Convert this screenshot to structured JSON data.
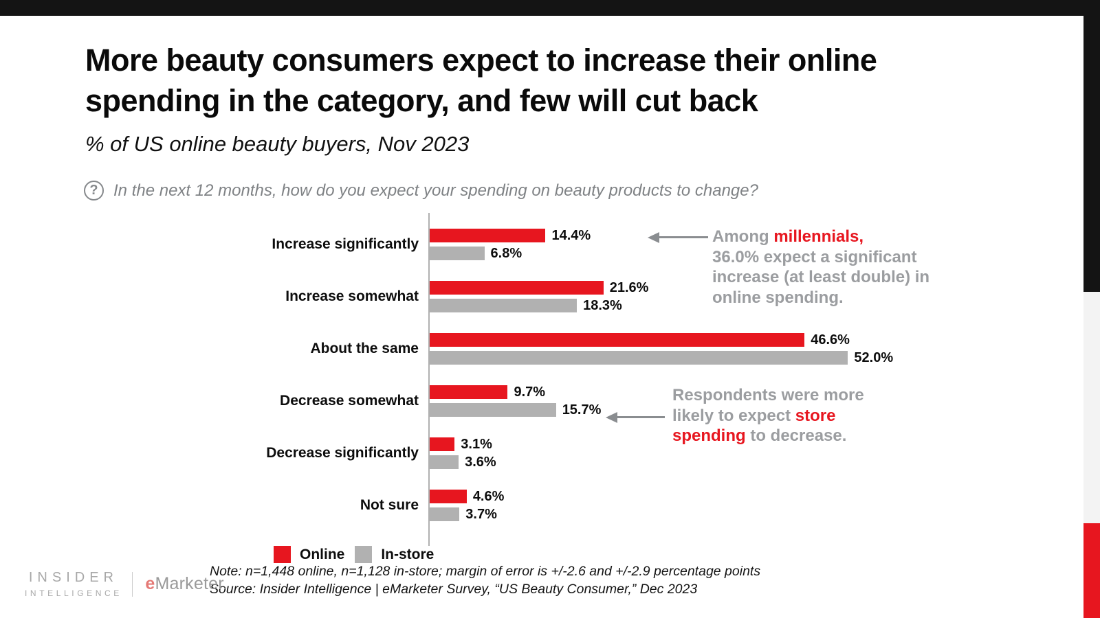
{
  "header": {
    "title_line1": "More beauty consumers expect to increase their online",
    "title_line2": "spending in the category, and few will cut back",
    "subtitle": "% of US online beauty buyers, Nov 2023",
    "question_icon": "question-mark-circle",
    "question": "In the next 12 months, how do you expect your spending on beauty products to change?"
  },
  "colors": {
    "online_red": "#e7161f",
    "instore_gray": "#b1b1b1",
    "annotation_gray": "#9b9da0",
    "accent_black": "#141414",
    "side_gray": "#f3f3f3"
  },
  "chart_data": {
    "type": "bar",
    "orientation": "horizontal",
    "title": "% of US online beauty buyers, Nov 2023",
    "categories": [
      "Increase significantly",
      "Increase somewhat",
      "About the same",
      "Decrease somewhat",
      "Decrease significantly",
      "Not sure"
    ],
    "series": [
      {
        "name": "Online",
        "color_key": "online_red",
        "values": [
          14.4,
          21.6,
          46.6,
          9.7,
          3.1,
          4.6
        ],
        "labels": [
          "14.4%",
          "21.6%",
          "46.6%",
          "9.7%",
          "3.1%",
          "4.6%"
        ]
      },
      {
        "name": "In-store",
        "color_key": "instore_gray",
        "values": [
          6.8,
          18.3,
          52.0,
          15.7,
          3.6,
          3.7
        ],
        "labels": [
          "6.8%",
          "18.3%",
          "52.0%",
          "15.7%",
          "3.6%",
          "3.7%"
        ]
      }
    ],
    "xlim": [
      0,
      55
    ],
    "unit": "percent",
    "grid": false,
    "legend_position": "bottom"
  },
  "annotations": [
    {
      "lines": [
        [
          {
            "t": "Among ",
            "c": "gray"
          },
          {
            "t": "millennials,",
            "c": "red"
          }
        ],
        [
          {
            "t": "36.0% expect a significant",
            "c": "gray"
          }
        ],
        [
          {
            "t": "increase (at least double) in",
            "c": "gray"
          }
        ],
        [
          {
            "t": "online spending.",
            "c": "gray"
          }
        ]
      ]
    },
    {
      "lines": [
        [
          {
            "t": "Respondents were more",
            "c": "gray"
          }
        ],
        [
          {
            "t": "likely to expect ",
            "c": "gray"
          },
          {
            "t": "store",
            "c": "red"
          }
        ],
        [
          {
            "t": "spending",
            "c": "red"
          },
          {
            "t": " to decrease.",
            "c": "gray"
          }
        ]
      ]
    }
  ],
  "footnotes": {
    "note": "Note: n=1,448 online, n=1,128 in-store; margin of error is +/-2.6 and +/-2.9 percentage points",
    "source": "Source: Insider Intelligence | eMarketer Survey, “US Beauty Consumer,” Dec 2023"
  },
  "branding": {
    "insider_line1": "INSIDER",
    "insider_line2": "INTELLIGENCE",
    "emarketer_e": "e",
    "emarketer_rest": "Marketer."
  }
}
